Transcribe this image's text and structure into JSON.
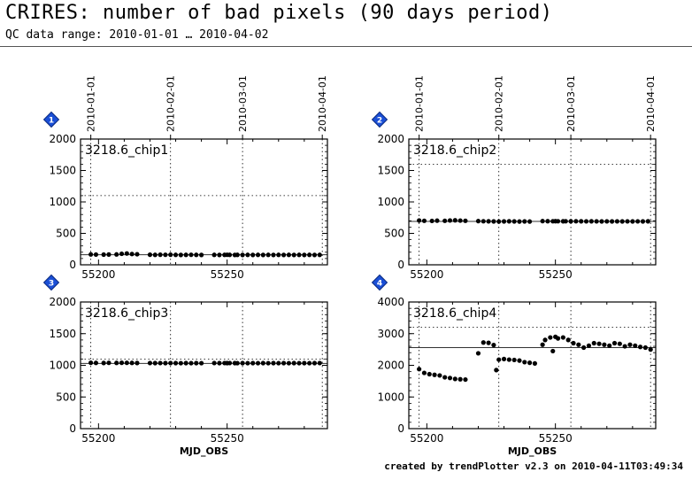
{
  "header": {
    "title": "CRIRES: number of bad pixels (90 days period)",
    "subtitle": "QC data range: 2010-01-01 … 2010-04-02"
  },
  "footer": "created by trendPlotter v2.3 on 2010-04-11T03:49:34",
  "date_ticks": [
    {
      "label": "2010-01-01",
      "mjd": 55197
    },
    {
      "label": "2010-02-01",
      "mjd": 55228
    },
    {
      "label": "2010-03-01",
      "mjd": 55256
    },
    {
      "label": "2010-04-01",
      "mjd": 55287
    }
  ],
  "chart_data": [
    {
      "type": "scatter",
      "badge": "1",
      "label": "3218.6_chip1",
      "xlabel": "",
      "xlim": [
        55193,
        55289
      ],
      "ylim": [
        0,
        2000
      ],
      "xticks": [
        55200,
        55250
      ],
      "yticks": [
        0,
        500,
        1000,
        1500,
        2000
      ],
      "ref_line": 160,
      "limit_line": 1100,
      "points": [
        [
          55197,
          165
        ],
        [
          55199,
          163
        ],
        [
          55202,
          162
        ],
        [
          55204,
          164
        ],
        [
          55207,
          165
        ],
        [
          55209,
          175
        ],
        [
          55211,
          180
        ],
        [
          55213,
          172
        ],
        [
          55215,
          168
        ],
        [
          55220,
          160
        ],
        [
          55222,
          158
        ],
        [
          55224,
          160
        ],
        [
          55226,
          159
        ],
        [
          55228,
          160
        ],
        [
          55230,
          158
        ],
        [
          55232,
          157
        ],
        [
          55234,
          158
        ],
        [
          55236,
          159
        ],
        [
          55238,
          158
        ],
        [
          55240,
          157
        ],
        [
          55245,
          158
        ],
        [
          55247,
          157
        ],
        [
          55249,
          158
        ],
        [
          55250,
          159
        ],
        [
          55251,
          158
        ],
        [
          55253,
          157
        ],
        [
          55254,
          158
        ],
        [
          55256,
          157
        ],
        [
          55258,
          158
        ],
        [
          55260,
          157
        ],
        [
          55262,
          158
        ],
        [
          55264,
          157
        ],
        [
          55266,
          158
        ],
        [
          55268,
          157
        ],
        [
          55270,
          158
        ],
        [
          55272,
          157
        ],
        [
          55274,
          158
        ],
        [
          55276,
          157
        ],
        [
          55278,
          158
        ],
        [
          55280,
          157
        ],
        [
          55282,
          158
        ],
        [
          55284,
          157
        ],
        [
          55286,
          158
        ]
      ]
    },
    {
      "type": "scatter",
      "badge": "2",
      "label": "3218.6_chip2",
      "xlabel": "",
      "xlim": [
        55193,
        55289
      ],
      "ylim": [
        0,
        2000
      ],
      "xticks": [
        55200,
        55250
      ],
      "yticks": [
        0,
        500,
        1000,
        1500,
        2000
      ],
      "ref_line": 690,
      "limit_line": 1600,
      "points": [
        [
          55197,
          705
        ],
        [
          55199,
          700
        ],
        [
          55202,
          698
        ],
        [
          55204,
          702
        ],
        [
          55207,
          700
        ],
        [
          55209,
          705
        ],
        [
          55211,
          708
        ],
        [
          55213,
          703
        ],
        [
          55215,
          700
        ],
        [
          55220,
          695
        ],
        [
          55222,
          693
        ],
        [
          55224,
          692
        ],
        [
          55226,
          690
        ],
        [
          55228,
          688
        ],
        [
          55230,
          690
        ],
        [
          55232,
          692
        ],
        [
          55234,
          690
        ],
        [
          55236,
          688
        ],
        [
          55238,
          690
        ],
        [
          55240,
          688
        ],
        [
          55245,
          695
        ],
        [
          55247,
          694
        ],
        [
          55249,
          693
        ],
        [
          55250,
          694
        ],
        [
          55251,
          693
        ],
        [
          55253,
          692
        ],
        [
          55254,
          693
        ],
        [
          55256,
          692
        ],
        [
          55258,
          693
        ],
        [
          55260,
          692
        ],
        [
          55262,
          691
        ],
        [
          55264,
          692
        ],
        [
          55266,
          691
        ],
        [
          55268,
          690
        ],
        [
          55270,
          691
        ],
        [
          55272,
          690
        ],
        [
          55274,
          691
        ],
        [
          55276,
          690
        ],
        [
          55278,
          691
        ],
        [
          55280,
          690
        ],
        [
          55282,
          691
        ],
        [
          55284,
          690
        ],
        [
          55286,
          692
        ]
      ]
    },
    {
      "type": "scatter",
      "badge": "3",
      "label": "3218.6_chip3",
      "xlabel": "MJD_OBS",
      "xlim": [
        55193,
        55289
      ],
      "ylim": [
        0,
        2000
      ],
      "xticks": [
        55200,
        55250
      ],
      "yticks": [
        0,
        500,
        1000,
        1500,
        2000
      ],
      "ref_line": 1030,
      "limit_line": 1100,
      "points": [
        [
          55197,
          1040
        ],
        [
          55199,
          1038
        ],
        [
          55202,
          1037
        ],
        [
          55204,
          1039
        ],
        [
          55207,
          1038
        ],
        [
          55209,
          1040
        ],
        [
          55211,
          1039
        ],
        [
          55213,
          1038
        ],
        [
          55215,
          1037
        ],
        [
          55220,
          1036
        ],
        [
          55222,
          1035
        ],
        [
          55224,
          1036
        ],
        [
          55226,
          1035
        ],
        [
          55228,
          1036
        ],
        [
          55230,
          1035
        ],
        [
          55232,
          1034
        ],
        [
          55234,
          1035
        ],
        [
          55236,
          1034
        ],
        [
          55238,
          1035
        ],
        [
          55240,
          1034
        ],
        [
          55245,
          1036
        ],
        [
          55247,
          1035
        ],
        [
          55249,
          1036
        ],
        [
          55250,
          1035
        ],
        [
          55251,
          1036
        ],
        [
          55253,
          1035
        ],
        [
          55254,
          1034
        ],
        [
          55256,
          1035
        ],
        [
          55258,
          1034
        ],
        [
          55260,
          1035
        ],
        [
          55262,
          1034
        ],
        [
          55264,
          1035
        ],
        [
          55266,
          1034
        ],
        [
          55268,
          1035
        ],
        [
          55270,
          1034
        ],
        [
          55272,
          1035
        ],
        [
          55274,
          1034
        ],
        [
          55276,
          1035
        ],
        [
          55278,
          1034
        ],
        [
          55280,
          1035
        ],
        [
          55282,
          1034
        ],
        [
          55284,
          1035
        ],
        [
          55286,
          1036
        ]
      ]
    },
    {
      "type": "scatter",
      "badge": "4",
      "label": "3218.6_chip4",
      "xlabel": "MJD_OBS",
      "xlim": [
        55193,
        55289
      ],
      "ylim": [
        0,
        4000
      ],
      "xticks": [
        55200,
        55250
      ],
      "yticks": [
        0,
        1000,
        2000,
        3000,
        4000
      ],
      "ref_line": 2560,
      "limit_line": 3200,
      "points": [
        [
          55197,
          1880
        ],
        [
          55199,
          1760
        ],
        [
          55201,
          1720
        ],
        [
          55203,
          1700
        ],
        [
          55205,
          1680
        ],
        [
          55207,
          1620
        ],
        [
          55209,
          1600
        ],
        [
          55211,
          1570
        ],
        [
          55213,
          1560
        ],
        [
          55215,
          1550
        ],
        [
          55220,
          2380
        ],
        [
          55222,
          2720
        ],
        [
          55224,
          2710
        ],
        [
          55226,
          2640
        ],
        [
          55227,
          1850
        ],
        [
          55228,
          2180
        ],
        [
          55230,
          2200
        ],
        [
          55232,
          2180
        ],
        [
          55234,
          2170
        ],
        [
          55236,
          2150
        ],
        [
          55238,
          2100
        ],
        [
          55240,
          2080
        ],
        [
          55242,
          2060
        ],
        [
          55245,
          2650
        ],
        [
          55246,
          2800
        ],
        [
          55248,
          2880
        ],
        [
          55249,
          2450
        ],
        [
          55250,
          2900
        ],
        [
          55251,
          2850
        ],
        [
          55253,
          2880
        ],
        [
          55255,
          2800
        ],
        [
          55257,
          2700
        ],
        [
          55259,
          2650
        ],
        [
          55261,
          2560
        ],
        [
          55263,
          2620
        ],
        [
          55265,
          2700
        ],
        [
          55267,
          2680
        ],
        [
          55269,
          2650
        ],
        [
          55271,
          2620
        ],
        [
          55273,
          2700
        ],
        [
          55275,
          2680
        ],
        [
          55277,
          2600
        ],
        [
          55279,
          2650
        ],
        [
          55281,
          2620
        ],
        [
          55283,
          2580
        ],
        [
          55285,
          2560
        ],
        [
          55287,
          2500
        ]
      ]
    }
  ]
}
